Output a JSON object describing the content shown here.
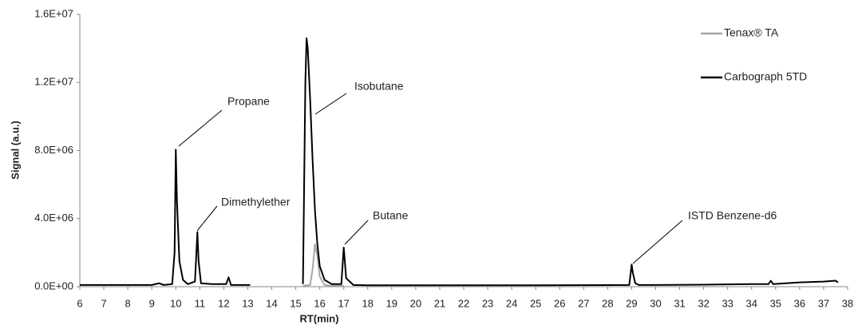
{
  "chart_data": {
    "type": "line",
    "y_label": "Signal (a.u.)",
    "x_label": "RT(min)",
    "xlim": [
      6,
      38
    ],
    "xticks": [
      6,
      7,
      8,
      9,
      10,
      11,
      12,
      13,
      14,
      15,
      16,
      17,
      18,
      19,
      20,
      21,
      22,
      23,
      24,
      25,
      26,
      27,
      28,
      29,
      30,
      31,
      32,
      33,
      34,
      35,
      36,
      37,
      38
    ],
    "ylim": [
      0,
      16000000
    ],
    "yticks": [
      {
        "value": 0,
        "label": "0.0E+00"
      },
      {
        "value": 4000000,
        "label": "4.0E+06"
      },
      {
        "value": 8000000,
        "label": "8.0E+06"
      },
      {
        "value": 12000000,
        "label": "1.2E+07"
      },
      {
        "value": 16000000,
        "label": "1.6E+07"
      }
    ],
    "grid": false,
    "legend": "top-right",
    "series": [
      {
        "name": "Tenax® TA",
        "color": "#a6a6a6",
        "x": [
          15.3,
          15.6,
          15.7,
          15.8,
          15.9,
          16.0,
          16.2,
          16.5,
          17.0
        ],
        "values": [
          50000,
          100000,
          1000000,
          2500000,
          1800000,
          600000,
          100000,
          50000,
          50000
        ]
      },
      {
        "name": "Carbograph 5TD",
        "color": "#000000",
        "x": [
          6,
          7,
          8,
          9,
          9.3,
          9.5,
          9.85,
          9.95,
          10.0,
          10.05,
          10.15,
          10.3,
          10.5,
          10.8,
          10.9,
          10.95,
          11.05,
          11.5,
          12.1,
          12.2,
          12.3,
          13.1,
          14,
          15.3,
          15.4,
          15.45,
          15.5,
          15.6,
          15.7,
          15.8,
          15.9,
          16.0,
          16.2,
          16.5,
          16.9,
          17.0,
          17.1,
          17.4,
          18,
          20,
          25,
          28.9,
          29.0,
          29.05,
          29.15,
          29.3,
          30,
          32,
          34,
          34.7,
          34.8,
          34.9,
          36,
          37,
          37.5,
          37.6
        ],
        "values": [
          100000,
          100000,
          100000,
          100000,
          200000,
          100000,
          150000,
          2000000,
          8050000,
          5000000,
          1500000,
          400000,
          150000,
          300000,
          3200000,
          1500000,
          200000,
          150000,
          150000,
          550000,
          100000,
          100000,
          null,
          150000,
          12000000,
          14600000,
          14000000,
          11000000,
          7500000,
          4500000,
          2500000,
          1200000,
          400000,
          150000,
          150000,
          2300000,
          500000,
          100000,
          80000,
          80000,
          80000,
          100000,
          1300000,
          800000,
          200000,
          100000,
          100000,
          120000,
          150000,
          150000,
          350000,
          150000,
          250000,
          300000,
          350000,
          250000
        ]
      }
    ],
    "annotations": [
      "Propane",
      "Dimethylether",
      "Isobutane",
      "Butane",
      "ISTD Benzene-d6"
    ]
  }
}
